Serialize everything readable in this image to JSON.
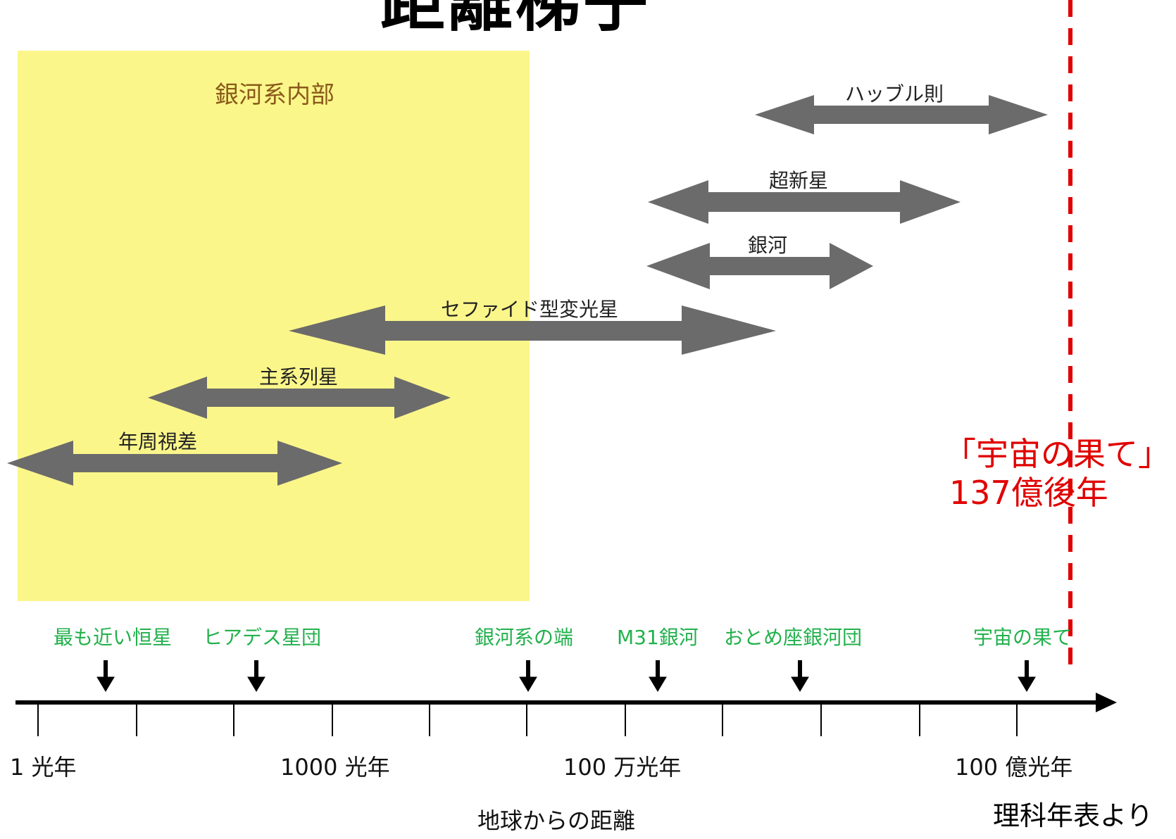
{
  "title": "距離梯子",
  "galaxy_region": {
    "label": "銀河系内部"
  },
  "methods": [
    {
      "id": "hubble",
      "label": "ハッブル則"
    },
    {
      "id": "supernova",
      "label": "超新星"
    },
    {
      "id": "galaxy",
      "label": "銀河"
    },
    {
      "id": "cepheid",
      "label": "セファイド型変光星"
    },
    {
      "id": "main-sequence",
      "label": "主系列星"
    },
    {
      "id": "parallax",
      "label": "年周視差"
    }
  ],
  "markers": [
    {
      "id": "nearest-star",
      "label": "最も近い恒星"
    },
    {
      "id": "hyades",
      "label": "ヒアデス星団"
    },
    {
      "id": "galaxy-edge",
      "label": "銀河系の端"
    },
    {
      "id": "m31",
      "label": "M31銀河"
    },
    {
      "id": "virgo",
      "label": "おとめ座銀河団"
    },
    {
      "id": "universe-edge",
      "label": "宇宙の果て"
    }
  ],
  "axis": {
    "title": "地球からの距離",
    "ticks": [
      "1 光年",
      "1000 光年",
      "100 万光年",
      "100 億光年"
    ]
  },
  "edge_annotation": {
    "line1": "「宇宙の果て」",
    "line2": "137億後年",
    "color": "#e00000"
  },
  "source": "理科年表より",
  "colors": {
    "region": "#fbf68a",
    "arrow": "#6b6b6b",
    "marker_text": "#22b14c",
    "edge": "#e00000"
  }
}
